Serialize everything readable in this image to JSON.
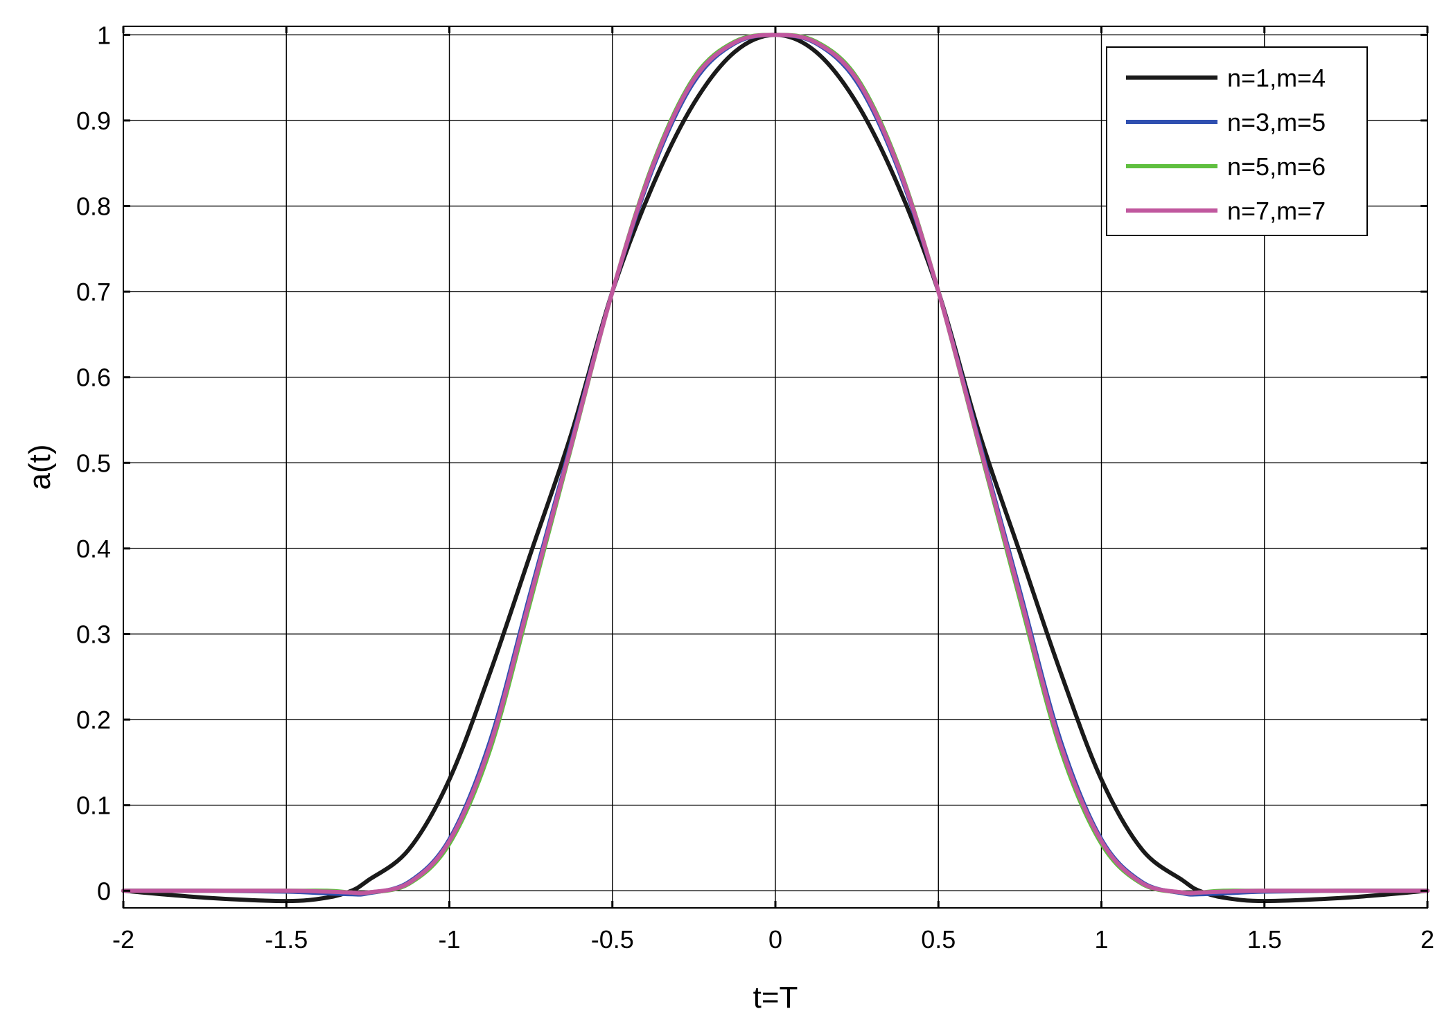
{
  "chart_data": {
    "type": "line",
    "xlabel": "t=T",
    "ylabel": "a(t)",
    "xlim": [
      -2,
      2
    ],
    "ylim": [
      -0.02,
      1.01
    ],
    "xticks": [
      "-2",
      "-1.5",
      "-1",
      "-0.5",
      "0",
      "0.5",
      "1",
      "1.5",
      "2"
    ],
    "yticks": [
      "0",
      "0.1",
      "0.2",
      "0.3",
      "0.4",
      "0.5",
      "0.6",
      "0.7",
      "0.8",
      "0.9",
      "1"
    ],
    "grid": true,
    "legend_position": "top-right",
    "x": [
      -2,
      -1.75,
      -1.5,
      -1.375,
      -1.3,
      -1.25,
      -1.125,
      -1,
      -0.875,
      -0.75,
      -0.625,
      -0.5,
      -0.375,
      -0.25,
      -0.125,
      0,
      0.125,
      0.25,
      0.375,
      0.5,
      0.625,
      0.75,
      0.875,
      1,
      1.125,
      1.25,
      1.3,
      1.375,
      1.5,
      1.75,
      2
    ],
    "series": [
      {
        "name": "n=1,m=4",
        "color": "#1a1a1a",
        "values": [
          0,
          -0.008,
          -0.012,
          -0.008,
          0,
          0.012,
          0.048,
          0.13,
          0.255,
          0.395,
          0.535,
          0.7,
          0.825,
          0.92,
          0.98,
          1.0,
          0.98,
          0.92,
          0.825,
          0.7,
          0.535,
          0.395,
          0.255,
          0.13,
          0.048,
          0.012,
          0,
          -0.008,
          -0.012,
          -0.008,
          0
        ]
      },
      {
        "name": "n=3,m=5",
        "color": "#2f4fb0",
        "values": [
          0,
          0,
          -0.001,
          -0.003,
          -0.004,
          -0.003,
          0.01,
          0.06,
          0.175,
          0.35,
          0.525,
          0.7,
          0.845,
          0.945,
          0.99,
          1.0,
          0.99,
          0.945,
          0.845,
          0.7,
          0.525,
          0.35,
          0.175,
          0.06,
          0.01,
          -0.003,
          -0.004,
          -0.003,
          -0.001,
          0,
          0
        ]
      },
      {
        "name": "n=5,m=6",
        "color": "#5fbf3f",
        "values": [
          0,
          0,
          0,
          0,
          -0.002,
          -0.002,
          0.008,
          0.055,
          0.165,
          0.34,
          0.52,
          0.7,
          0.85,
          0.95,
          0.992,
          1.0,
          0.992,
          0.95,
          0.85,
          0.7,
          0.52,
          0.34,
          0.165,
          0.055,
          0.008,
          -0.002,
          -0.002,
          0,
          0,
          0,
          0
        ]
      },
      {
        "name": "n=7,m=7",
        "color": "#c0579e",
        "values": [
          0,
          0,
          0,
          -0.001,
          -0.002,
          -0.002,
          0.009,
          0.058,
          0.17,
          0.345,
          0.522,
          0.7,
          0.848,
          0.948,
          0.991,
          1.0,
          0.991,
          0.948,
          0.848,
          0.7,
          0.522,
          0.345,
          0.17,
          0.058,
          0.009,
          -0.002,
          -0.002,
          -0.001,
          0,
          0,
          0
        ]
      }
    ]
  }
}
